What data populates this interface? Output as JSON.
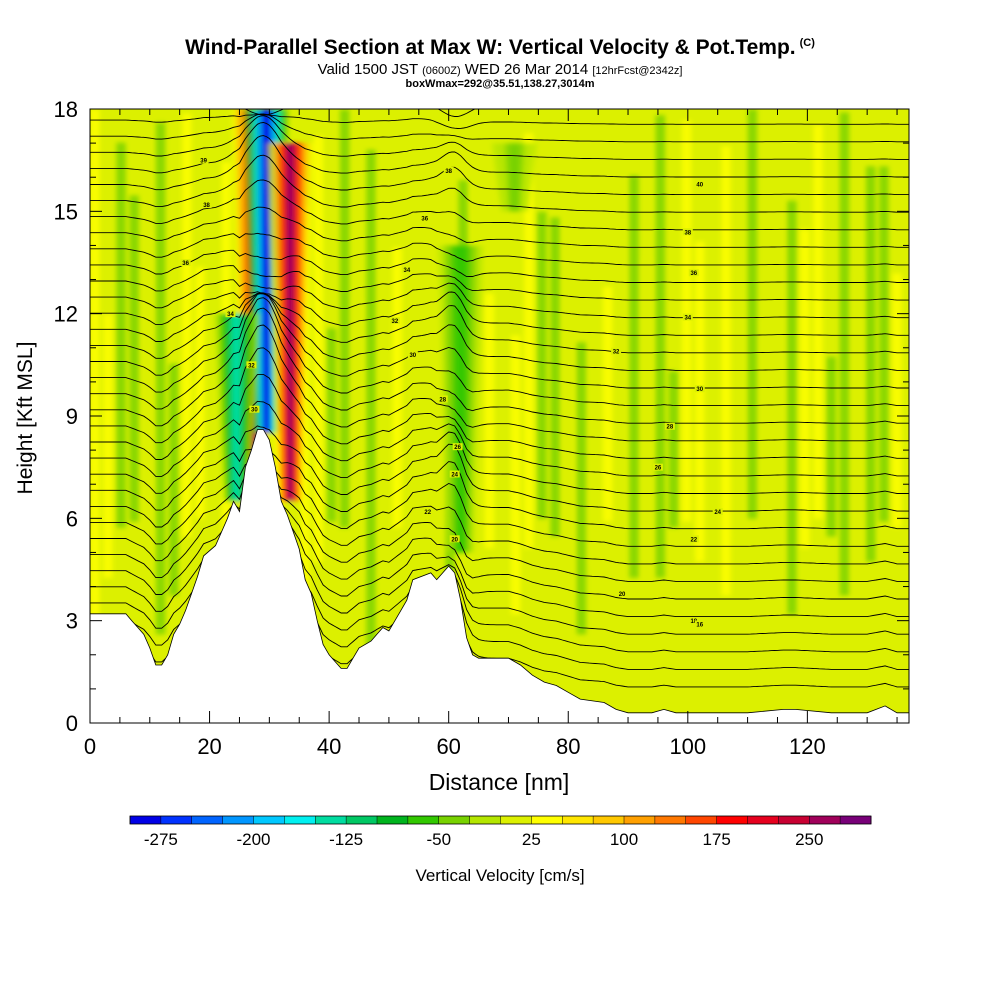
{
  "header": {
    "title": "Wind-Parallel Section at Max W: Vertical Velocity & Pot.Temp.",
    "title_unit": "(C)",
    "valid_prefix": "Valid 1500 JST",
    "valid_utc": "(0600Z)",
    "valid_date": "WED 26 Mar 2014",
    "forecast": "[12hrFcst@2342z]",
    "box_info": "boxWmax=292@35.51,138.27,3014m"
  },
  "chart_data": {
    "type": "heatmap",
    "xlabel": "Distance [nm]",
    "ylabel": "Height [Kft MSL]",
    "xlim": [
      0,
      137
    ],
    "ylim": [
      0,
      18
    ],
    "x_ticks": [
      "0",
      "20",
      "40",
      "60",
      "80",
      "100",
      "120"
    ],
    "x_tick_values": [
      0,
      20,
      40,
      60,
      80,
      100,
      120
    ],
    "y_ticks": [
      "0",
      "3",
      "6",
      "9",
      "12",
      "15",
      "18"
    ],
    "y_tick_values": [
      0,
      3,
      6,
      9,
      12,
      15,
      18
    ],
    "colorbar": {
      "label": "Vertical Velocity [cm/s]",
      "tick_labels": [
        "-275",
        "-200",
        "-125",
        "-50",
        "25",
        "100",
        "175",
        "250"
      ],
      "tick_values": [
        -275,
        -200,
        -125,
        -50,
        25,
        100,
        175,
        250
      ],
      "min": -300,
      "max": 300,
      "colors": [
        "#0000e6",
        "#0032ff",
        "#0064ff",
        "#0096ff",
        "#00c8ff",
        "#00f0f0",
        "#00dca0",
        "#00c864",
        "#00b41e",
        "#32c800",
        "#78d200",
        "#b4e600",
        "#dcf000",
        "#ffff00",
        "#ffe600",
        "#ffc800",
        "#ffa000",
        "#ff7800",
        "#ff4600",
        "#ff0000",
        "#e6001e",
        "#c80032",
        "#a0005a",
        "#780078"
      ]
    },
    "terrain_height_kft": [
      [
        0,
        3.2
      ],
      [
        6,
        3.2
      ],
      [
        7,
        3.0
      ],
      [
        8,
        2.8
      ],
      [
        9,
        2.6
      ],
      [
        10,
        2.2
      ],
      [
        11,
        1.7
      ],
      [
        12,
        1.7
      ],
      [
        13,
        2.0
      ],
      [
        14,
        2.6
      ],
      [
        15,
        2.9
      ],
      [
        16,
        3.3
      ],
      [
        17,
        3.8
      ],
      [
        18,
        4.3
      ],
      [
        19,
        4.9
      ],
      [
        21,
        5.2
      ],
      [
        22,
        5.6
      ],
      [
        23,
        6.0
      ],
      [
        24,
        6.5
      ],
      [
        25,
        6.2
      ],
      [
        26,
        7.5
      ],
      [
        27,
        8.0
      ],
      [
        28,
        8.6
      ],
      [
        29,
        8.6
      ],
      [
        30,
        8.3
      ],
      [
        31,
        7.5
      ],
      [
        32,
        6.5
      ],
      [
        33,
        6.1
      ],
      [
        34,
        5.6
      ],
      [
        35,
        5.1
      ],
      [
        36,
        4.2
      ],
      [
        37,
        3.8
      ],
      [
        38,
        3.0
      ],
      [
        39,
        2.3
      ],
      [
        40,
        2.0
      ],
      [
        41,
        1.8
      ],
      [
        42,
        1.6
      ],
      [
        43,
        1.6
      ],
      [
        44,
        1.9
      ],
      [
        45,
        2.2
      ],
      [
        47,
        2.4
      ],
      [
        48,
        2.6
      ],
      [
        49,
        2.8
      ],
      [
        50,
        2.7
      ],
      [
        51,
        3.0
      ],
      [
        52,
        3.3
      ],
      [
        53,
        3.6
      ],
      [
        54,
        4.2
      ],
      [
        57,
        4.4
      ],
      [
        58,
        4.2
      ],
      [
        59,
        4.4
      ],
      [
        60,
        4.6
      ],
      [
        61,
        4.4
      ],
      [
        62,
        3.6
      ],
      [
        63,
        2.5
      ],
      [
        64,
        2.0
      ],
      [
        65,
        1.9
      ],
      [
        70,
        1.9
      ],
      [
        72,
        1.7
      ],
      [
        74,
        1.4
      ],
      [
        76,
        1.2
      ],
      [
        78,
        1.1
      ],
      [
        80,
        0.9
      ],
      [
        82,
        0.7
      ],
      [
        86,
        0.6
      ],
      [
        88,
        0.4
      ],
      [
        90,
        0.3
      ],
      [
        94,
        0.3
      ],
      [
        96,
        0.4
      ],
      [
        98,
        0.3
      ],
      [
        104,
        0.3
      ],
      [
        106,
        0.3
      ],
      [
        110,
        0.3
      ],
      [
        116,
        0.4
      ],
      [
        118,
        0.4
      ],
      [
        124,
        0.3
      ],
      [
        130,
        0.3
      ],
      [
        133,
        0.5
      ],
      [
        135,
        0.3
      ],
      [
        137,
        0.3
      ]
    ],
    "velocity_features": [
      {
        "x": 27.5,
        "y_top": 18,
        "y_bottom": 7.5,
        "w_cm_s": 260
      },
      {
        "x": 29.5,
        "y_top": 18,
        "y_bottom": 8.5,
        "w_cm_s": -290
      },
      {
        "x": 33.5,
        "y_top": 17,
        "y_bottom": 6.5,
        "w_cm_s": 270
      },
      {
        "x": 24.5,
        "y_top": 12,
        "y_bottom": 6.5,
        "w_cm_s": -150
      },
      {
        "x": 62.0,
        "y_top": 14,
        "y_bottom": 5.0,
        "w_cm_s": -70
      },
      {
        "x": 71.0,
        "y_top": 17,
        "y_bottom": 15.0,
        "w_cm_s": -40
      }
    ],
    "theta_contour_labels": [
      "39",
      "38",
      "36",
      "34",
      "32",
      "30",
      "38",
      "36",
      "34",
      "32",
      "30",
      "28",
      "26",
      "24",
      "22",
      "20",
      "40",
      "38",
      "36",
      "34",
      "32",
      "30",
      "28",
      "26",
      "24",
      "22",
      "20",
      "18",
      "16"
    ],
    "theta_label_positions": [
      [
        19,
        16.5
      ],
      [
        19.5,
        15.2
      ],
      [
        16,
        13.5
      ],
      [
        23.5,
        12
      ],
      [
        27,
        10.5
      ],
      [
        27.5,
        9.2
      ],
      [
        60,
        16.2
      ],
      [
        56,
        14.8
      ],
      [
        53,
        13.3
      ],
      [
        51,
        11.8
      ],
      [
        54,
        10.8
      ],
      [
        59,
        9.5
      ],
      [
        61.5,
        8.1
      ],
      [
        61,
        7.3
      ],
      [
        56.5,
        6.2
      ],
      [
        61,
        5.4
      ],
      [
        102,
        15.8
      ],
      [
        100,
        14.4
      ],
      [
        101,
        13.2
      ],
      [
        100,
        11.9
      ],
      [
        88,
        10.9
      ],
      [
        102,
        9.8
      ],
      [
        97,
        8.7
      ],
      [
        95,
        7.5
      ],
      [
        105,
        6.2
      ],
      [
        101,
        5.4
      ],
      [
        89,
        3.8
      ],
      [
        101,
        3.0
      ],
      [
        102,
        2.9
      ]
    ]
  }
}
